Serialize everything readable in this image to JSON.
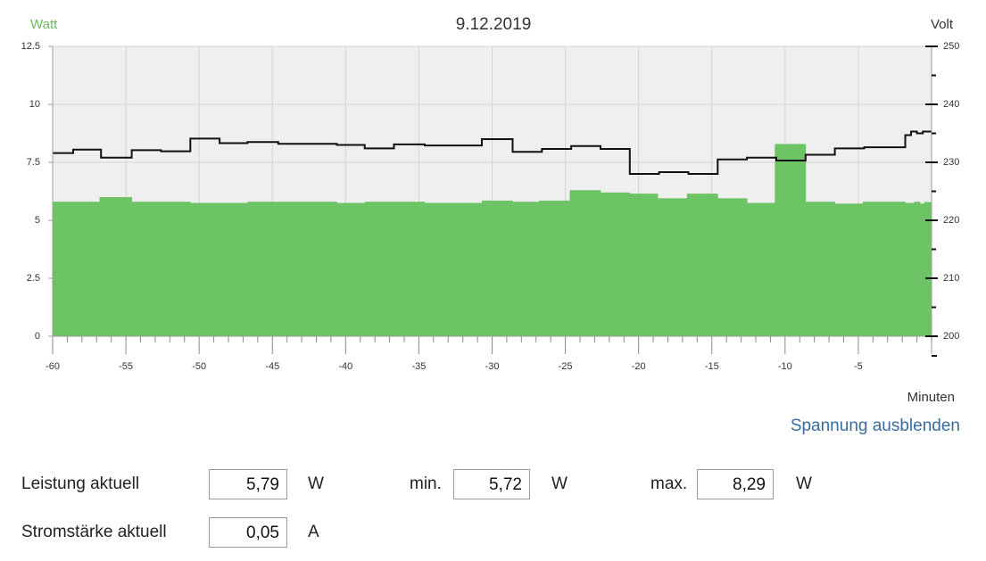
{
  "chart_data": {
    "type": "bar+line",
    "title": "9.12.2019",
    "left_axis_label": "Watt",
    "right_axis_label": "Volt",
    "xlabel": "Minuten",
    "xlim": [
      -60,
      0
    ],
    "ylim_left": [
      0,
      12.5
    ],
    "ylim_right": [
      200,
      250
    ],
    "x_ticks": [
      "-60",
      "-55",
      "-50",
      "-45",
      "-40",
      "-35",
      "-30",
      "-25",
      "-20",
      "-15",
      "-10",
      "-5"
    ],
    "x_tick_values": [
      -60,
      -55,
      -50,
      -45,
      -40,
      -35,
      -30,
      -25,
      -20,
      -15,
      -10,
      -5
    ],
    "y_ticks_left": [
      "0",
      "2.5",
      "5",
      "7.5",
      "10",
      "12.5"
    ],
    "y_tick_values_left": [
      0,
      2.5,
      5,
      7.5,
      10,
      12.5
    ],
    "y_ticks_right": [
      "200",
      "210",
      "220",
      "230",
      "240",
      "250"
    ],
    "y_tick_values_right": [
      200,
      210,
      220,
      230,
      240,
      250
    ],
    "grid": true,
    "power_series": {
      "unit": "W",
      "color": "#6cc464",
      "steps": [
        {
          "x0": -60,
          "x1": -56.8,
          "y": 5.8
        },
        {
          "x0": -56.8,
          "x1": -54.6,
          "y": 6.0
        },
        {
          "x0": -54.6,
          "x1": -50.6,
          "y": 5.8
        },
        {
          "x0": -50.6,
          "x1": -46.7,
          "y": 5.75
        },
        {
          "x0": -46.7,
          "x1": -40.6,
          "y": 5.8
        },
        {
          "x0": -40.6,
          "x1": -38.7,
          "y": 5.75
        },
        {
          "x0": -38.7,
          "x1": -34.6,
          "y": 5.8
        },
        {
          "x0": -34.6,
          "x1": -30.7,
          "y": 5.75
        },
        {
          "x0": -30.7,
          "x1": -28.6,
          "y": 5.85
        },
        {
          "x0": -28.6,
          "x1": -26.8,
          "y": 5.8
        },
        {
          "x0": -26.8,
          "x1": -24.7,
          "y": 5.85
        },
        {
          "x0": -24.7,
          "x1": -22.6,
          "y": 6.3
        },
        {
          "x0": -22.6,
          "x1": -20.6,
          "y": 6.2
        },
        {
          "x0": -20.6,
          "x1": -18.7,
          "y": 6.15
        },
        {
          "x0": -18.7,
          "x1": -16.7,
          "y": 5.95
        },
        {
          "x0": -16.7,
          "x1": -14.6,
          "y": 6.15
        },
        {
          "x0": -14.6,
          "x1": -12.6,
          "y": 5.95
        },
        {
          "x0": -12.6,
          "x1": -10.7,
          "y": 5.75
        },
        {
          "x0": -10.7,
          "x1": -8.6,
          "y": 8.29
        },
        {
          "x0": -8.6,
          "x1": -6.6,
          "y": 5.8
        },
        {
          "x0": -6.6,
          "x1": -4.7,
          "y": 5.72
        },
        {
          "x0": -4.7,
          "x1": -1.8,
          "y": 5.8
        },
        {
          "x0": -1.8,
          "x1": -1.2,
          "y": 5.75
        },
        {
          "x0": -1.2,
          "x1": -0.8,
          "y": 5.8
        },
        {
          "x0": -0.8,
          "x1": -0.5,
          "y": 5.72
        },
        {
          "x0": -0.5,
          "x1": 0,
          "y": 5.79
        }
      ]
    },
    "voltage_series": {
      "unit": "V",
      "color": "#111111",
      "steps": [
        {
          "x0": -60,
          "x1": -58.6,
          "y": 231.6
        },
        {
          "x0": -58.6,
          "x1": -56.7,
          "y": 232.2
        },
        {
          "x0": -56.7,
          "x1": -54.6,
          "y": 230.8
        },
        {
          "x0": -54.6,
          "x1": -52.6,
          "y": 232.1
        },
        {
          "x0": -52.6,
          "x1": -50.6,
          "y": 231.9
        },
        {
          "x0": -50.6,
          "x1": -48.6,
          "y": 234.1
        },
        {
          "x0": -48.6,
          "x1": -46.7,
          "y": 233.3
        },
        {
          "x0": -46.7,
          "x1": -44.6,
          "y": 233.5
        },
        {
          "x0": -44.6,
          "x1": -40.6,
          "y": 233.2
        },
        {
          "x0": -40.6,
          "x1": -38.7,
          "y": 233.0
        },
        {
          "x0": -38.7,
          "x1": -36.7,
          "y": 232.4
        },
        {
          "x0": -36.7,
          "x1": -34.6,
          "y": 233.1
        },
        {
          "x0": -34.6,
          "x1": -30.7,
          "y": 232.9
        },
        {
          "x0": -30.7,
          "x1": -28.6,
          "y": 234.0
        },
        {
          "x0": -28.6,
          "x1": -26.6,
          "y": 231.8
        },
        {
          "x0": -26.6,
          "x1": -24.6,
          "y": 232.3
        },
        {
          "x0": -24.6,
          "x1": -22.6,
          "y": 232.8
        },
        {
          "x0": -22.6,
          "x1": -20.6,
          "y": 232.3
        },
        {
          "x0": -20.6,
          "x1": -18.6,
          "y": 228.0
        },
        {
          "x0": -18.6,
          "x1": -16.6,
          "y": 228.3
        },
        {
          "x0": -16.6,
          "x1": -14.6,
          "y": 228.0
        },
        {
          "x0": -14.6,
          "x1": -12.6,
          "y": 230.5
        },
        {
          "x0": -12.6,
          "x1": -10.6,
          "y": 230.8
        },
        {
          "x0": -10.6,
          "x1": -8.6,
          "y": 230.3
        },
        {
          "x0": -8.6,
          "x1": -6.6,
          "y": 231.3
        },
        {
          "x0": -6.6,
          "x1": -4.6,
          "y": 232.4
        },
        {
          "x0": -4.6,
          "x1": -1.8,
          "y": 232.6
        },
        {
          "x0": -1.8,
          "x1": -1.4,
          "y": 234.7
        },
        {
          "x0": -1.4,
          "x1": -1.0,
          "y": 235.3
        },
        {
          "x0": -1.0,
          "x1": -0.6,
          "y": 235.0
        },
        {
          "x0": -0.6,
          "x1": 0,
          "y": 235.3
        }
      ]
    }
  },
  "toggle_link": "Spannung ausblenden",
  "readouts": {
    "power_label": "Leistung aktuell",
    "power_value": "5,79",
    "power_unit": "W",
    "min_label": "min.",
    "min_value": "5,72",
    "min_unit": "W",
    "max_label": "max.",
    "max_value": "8,29",
    "max_unit": "W",
    "current_label": "Stromstärke aktuell",
    "current_value": "0,05",
    "current_unit": "A"
  },
  "colors": {
    "plot_background": "#efefef",
    "power_fill": "#6cc464",
    "watt_label": "#6cb95e",
    "voltage_line": "#111111",
    "link": "#3a6ba0"
  }
}
